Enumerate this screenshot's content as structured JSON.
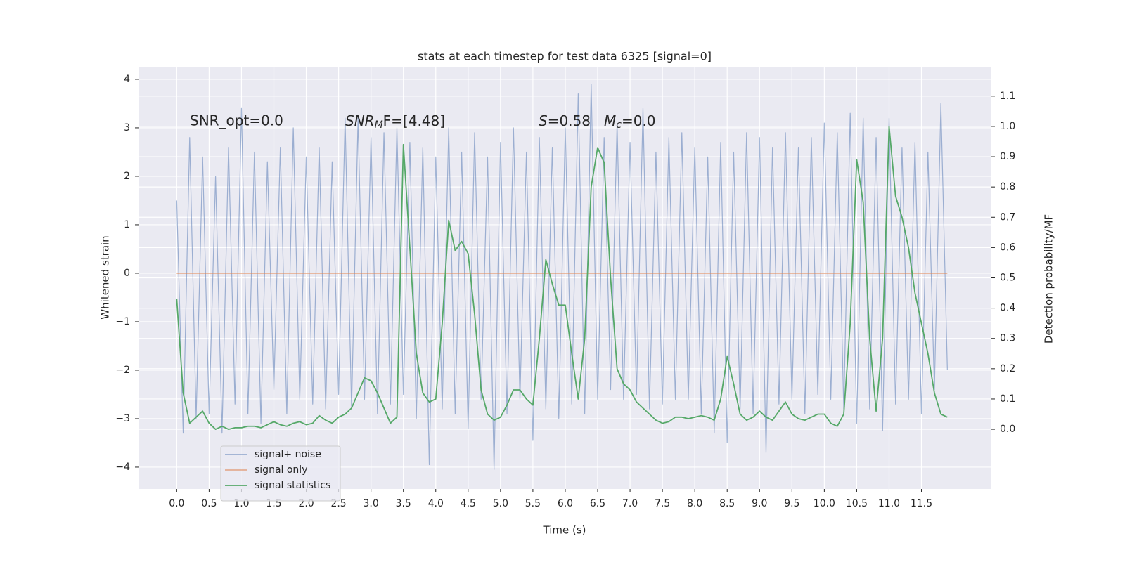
{
  "chart_data": {
    "type": "line",
    "title": "stats at each timestep for test data 6325 [signal=0]",
    "xlabel": "Time (s)",
    "ylabel": "Whitened strain",
    "y2label": "Detection probability/MF",
    "annotations": [
      {
        "text": "SNR_opt=0.0"
      },
      {
        "main": "SNR",
        "sub": "M",
        "tail": "F=[4.48]"
      },
      {
        "main": "S",
        "tail": "=0.58"
      },
      {
        "main": "M",
        "sub": "c",
        "tail": "=0.0"
      }
    ],
    "x": [
      0,
      0.1,
      0.2,
      0.3,
      0.4,
      0.5,
      0.6,
      0.7,
      0.8,
      0.9,
      1,
      1.1,
      1.2,
      1.3,
      1.4,
      1.5,
      1.6,
      1.7,
      1.8,
      1.9,
      2,
      2.1,
      2.2,
      2.3,
      2.4,
      2.5,
      2.6,
      2.7,
      2.8,
      2.9,
      3,
      3.1,
      3.2,
      3.3,
      3.4,
      3.5,
      3.6,
      3.7,
      3.8,
      3.9,
      4,
      4.1,
      4.2,
      4.3,
      4.4,
      4.5,
      4.6,
      4.7,
      4.8,
      4.9,
      5,
      5.1,
      5.2,
      5.3,
      5.4,
      5.5,
      5.6,
      5.7,
      5.8,
      5.9,
      6,
      6.1,
      6.2,
      6.3,
      6.4,
      6.5,
      6.6,
      6.7,
      6.8,
      6.9,
      7,
      7.1,
      7.2,
      7.3,
      7.4,
      7.5,
      7.6,
      7.7,
      7.8,
      7.9,
      8,
      8.1,
      8.2,
      8.3,
      8.4,
      8.5,
      8.6,
      8.7,
      8.8,
      8.9,
      9,
      9.1,
      9.2,
      9.3,
      9.4,
      9.5,
      9.6,
      9.7,
      9.8,
      9.9,
      10,
      10.1,
      10.2,
      10.3,
      10.4,
      10.5,
      10.6,
      10.7,
      10.8,
      10.9,
      11,
      11.1,
      11.2,
      11.3,
      11.4,
      11.5,
      11.6,
      11.7,
      11.8,
      11.9
    ],
    "series": [
      {
        "name": "signal+ noise",
        "color": "#4c72b0",
        "opacity": 0.5,
        "axis": "y",
        "values": [
          1.5,
          -3.3,
          2.8,
          -3.0,
          2.4,
          -2.9,
          2.0,
          -3.3,
          2.6,
          -2.7,
          3.4,
          -2.9,
          2.5,
          -3.1,
          2.3,
          -2.4,
          2.6,
          -2.9,
          3.0,
          -2.6,
          2.4,
          -2.7,
          2.6,
          -2.8,
          2.3,
          -2.5,
          3.2,
          -2.8,
          3.2,
          -2.6,
          2.8,
          -2.9,
          2.9,
          -2.7,
          3.0,
          -2.5,
          2.7,
          -3.0,
          2.6,
          -3.95,
          2.4,
          -2.8,
          3.0,
          -2.9,
          2.5,
          -3.2,
          2.9,
          -2.6,
          2.4,
          -4.05,
          2.7,
          -2.9,
          3.0,
          -2.6,
          2.5,
          -3.45,
          2.8,
          -2.8,
          2.6,
          -3.0,
          3.0,
          -2.7,
          3.7,
          -2.9,
          3.9,
          -2.6,
          2.8,
          -2.4,
          3.1,
          -2.6,
          2.7,
          -2.5,
          3.4,
          -2.8,
          2.5,
          -2.7,
          2.8,
          -2.6,
          2.9,
          -2.6,
          2.6,
          -2.9,
          2.4,
          -3.3,
          2.7,
          -3.5,
          2.5,
          -2.8,
          2.9,
          -2.9,
          2.8,
          -3.7,
          2.6,
          -2.7,
          2.9,
          -2.6,
          2.6,
          -2.9,
          2.8,
          -2.5,
          3.1,
          -2.6,
          2.9,
          -2.8,
          3.3,
          -3.1,
          3.2,
          -2.8,
          2.8,
          -3.25,
          3.2,
          -2.7,
          2.6,
          -2.6,
          2.7,
          -2.9,
          2.5,
          -2.4,
          3.5,
          -2.0
        ]
      },
      {
        "name": "signal only",
        "color": "#dd8452",
        "opacity": 0.6,
        "axis": "y",
        "values": [
          0,
          0,
          0,
          0,
          0,
          0,
          0,
          0,
          0,
          0,
          0,
          0,
          0,
          0,
          0,
          0,
          0,
          0,
          0,
          0,
          0,
          0,
          0,
          0,
          0,
          0,
          0,
          0,
          0,
          0,
          0,
          0,
          0,
          0,
          0,
          0,
          0,
          0,
          0,
          0,
          0,
          0,
          0,
          0,
          0,
          0,
          0,
          0,
          0,
          0,
          0,
          0,
          0,
          0,
          0,
          0,
          0,
          0,
          0,
          0,
          0,
          0,
          0,
          0,
          0,
          0,
          0,
          0,
          0,
          0,
          0,
          0,
          0,
          0,
          0,
          0,
          0,
          0,
          0,
          0,
          0,
          0,
          0,
          0,
          0,
          0,
          0,
          0,
          0,
          0,
          0,
          0,
          0,
          0,
          0,
          0,
          0,
          0,
          0,
          0,
          0,
          0,
          0,
          0,
          0,
          0,
          0,
          0,
          0,
          0,
          0,
          0,
          0,
          0,
          0,
          0,
          0,
          0,
          0,
          0
        ]
      },
      {
        "name": "signal statistics",
        "color": "#55a868",
        "opacity": 1,
        "axis": "y2",
        "values": [
          0.43,
          0.12,
          0.02,
          0.04,
          0.06,
          0.02,
          0.0,
          0.01,
          0.0,
          0.005,
          0.005,
          0.01,
          0.01,
          0.005,
          0.015,
          0.025,
          0.015,
          0.01,
          0.02,
          0.025,
          0.015,
          0.02,
          0.045,
          0.03,
          0.02,
          0.04,
          0.05,
          0.07,
          0.12,
          0.17,
          0.16,
          0.12,
          0.07,
          0.02,
          0.04,
          0.94,
          0.6,
          0.25,
          0.12,
          0.09,
          0.1,
          0.35,
          0.69,
          0.59,
          0.62,
          0.58,
          0.38,
          0.13,
          0.05,
          0.03,
          0.04,
          0.08,
          0.13,
          0.13,
          0.1,
          0.08,
          0.3,
          0.56,
          0.48,
          0.41,
          0.41,
          0.25,
          0.1,
          0.3,
          0.8,
          0.93,
          0.88,
          0.5,
          0.2,
          0.15,
          0.13,
          0.09,
          0.07,
          0.05,
          0.03,
          0.02,
          0.025,
          0.04,
          0.04,
          0.035,
          0.04,
          0.045,
          0.04,
          0.03,
          0.1,
          0.24,
          0.15,
          0.05,
          0.03,
          0.04,
          0.06,
          0.04,
          0.03,
          0.06,
          0.09,
          0.05,
          0.035,
          0.03,
          0.04,
          0.05,
          0.05,
          0.02,
          0.01,
          0.05,
          0.35,
          0.89,
          0.75,
          0.3,
          0.06,
          0.3,
          1.0,
          0.77,
          0.7,
          0.6,
          0.45,
          0.35,
          0.25,
          0.12,
          0.05,
          0.04
        ]
      }
    ],
    "xlim": [
      -0.59,
      12.58
    ],
    "ylim": [
      -4.45,
      4.26
    ],
    "y2lim": [
      -0.197,
      1.197
    ],
    "xticks": [
      {
        "value": 0,
        "label": "0.0"
      },
      0.5,
      {
        "value": 1,
        "label": "1.0"
      },
      1.5,
      {
        "value": 2,
        "label": "2.0"
      },
      2.5,
      {
        "value": 3,
        "label": "3.0"
      },
      3.5,
      {
        "value": 4,
        "label": "4.0"
      },
      4.5,
      {
        "value": 5,
        "label": "5.0"
      },
      5.5,
      {
        "value": 6,
        "label": "6.0"
      },
      6.5,
      {
        "value": 7,
        "label": "7.0"
      },
      7.5,
      {
        "value": 8,
        "label": "8.0"
      },
      8.5,
      {
        "value": 9,
        "label": "9.0"
      },
      9.5,
      {
        "value": 10,
        "label": "10.0"
      },
      10.5,
      {
        "value": 11,
        "label": "11.0"
      },
      11.5
    ],
    "yticks": [
      {
        "value": -4,
        "label": "−4"
      },
      {
        "value": -3,
        "label": "−3"
      },
      {
        "value": -2,
        "label": "−2"
      },
      {
        "value": -1,
        "label": "−1"
      },
      0,
      1,
      2,
      3,
      4
    ],
    "y2ticks": [
      {
        "value": 0,
        "label": "0.0"
      },
      0.1,
      0.2,
      0.3,
      0.4,
      0.5,
      0.6,
      0.7,
      0.8,
      0.9,
      {
        "value": 1,
        "label": "1.0"
      },
      1.1
    ],
    "grid": true,
    "legend_loc": "lower left",
    "background": "#eaeaf2"
  }
}
